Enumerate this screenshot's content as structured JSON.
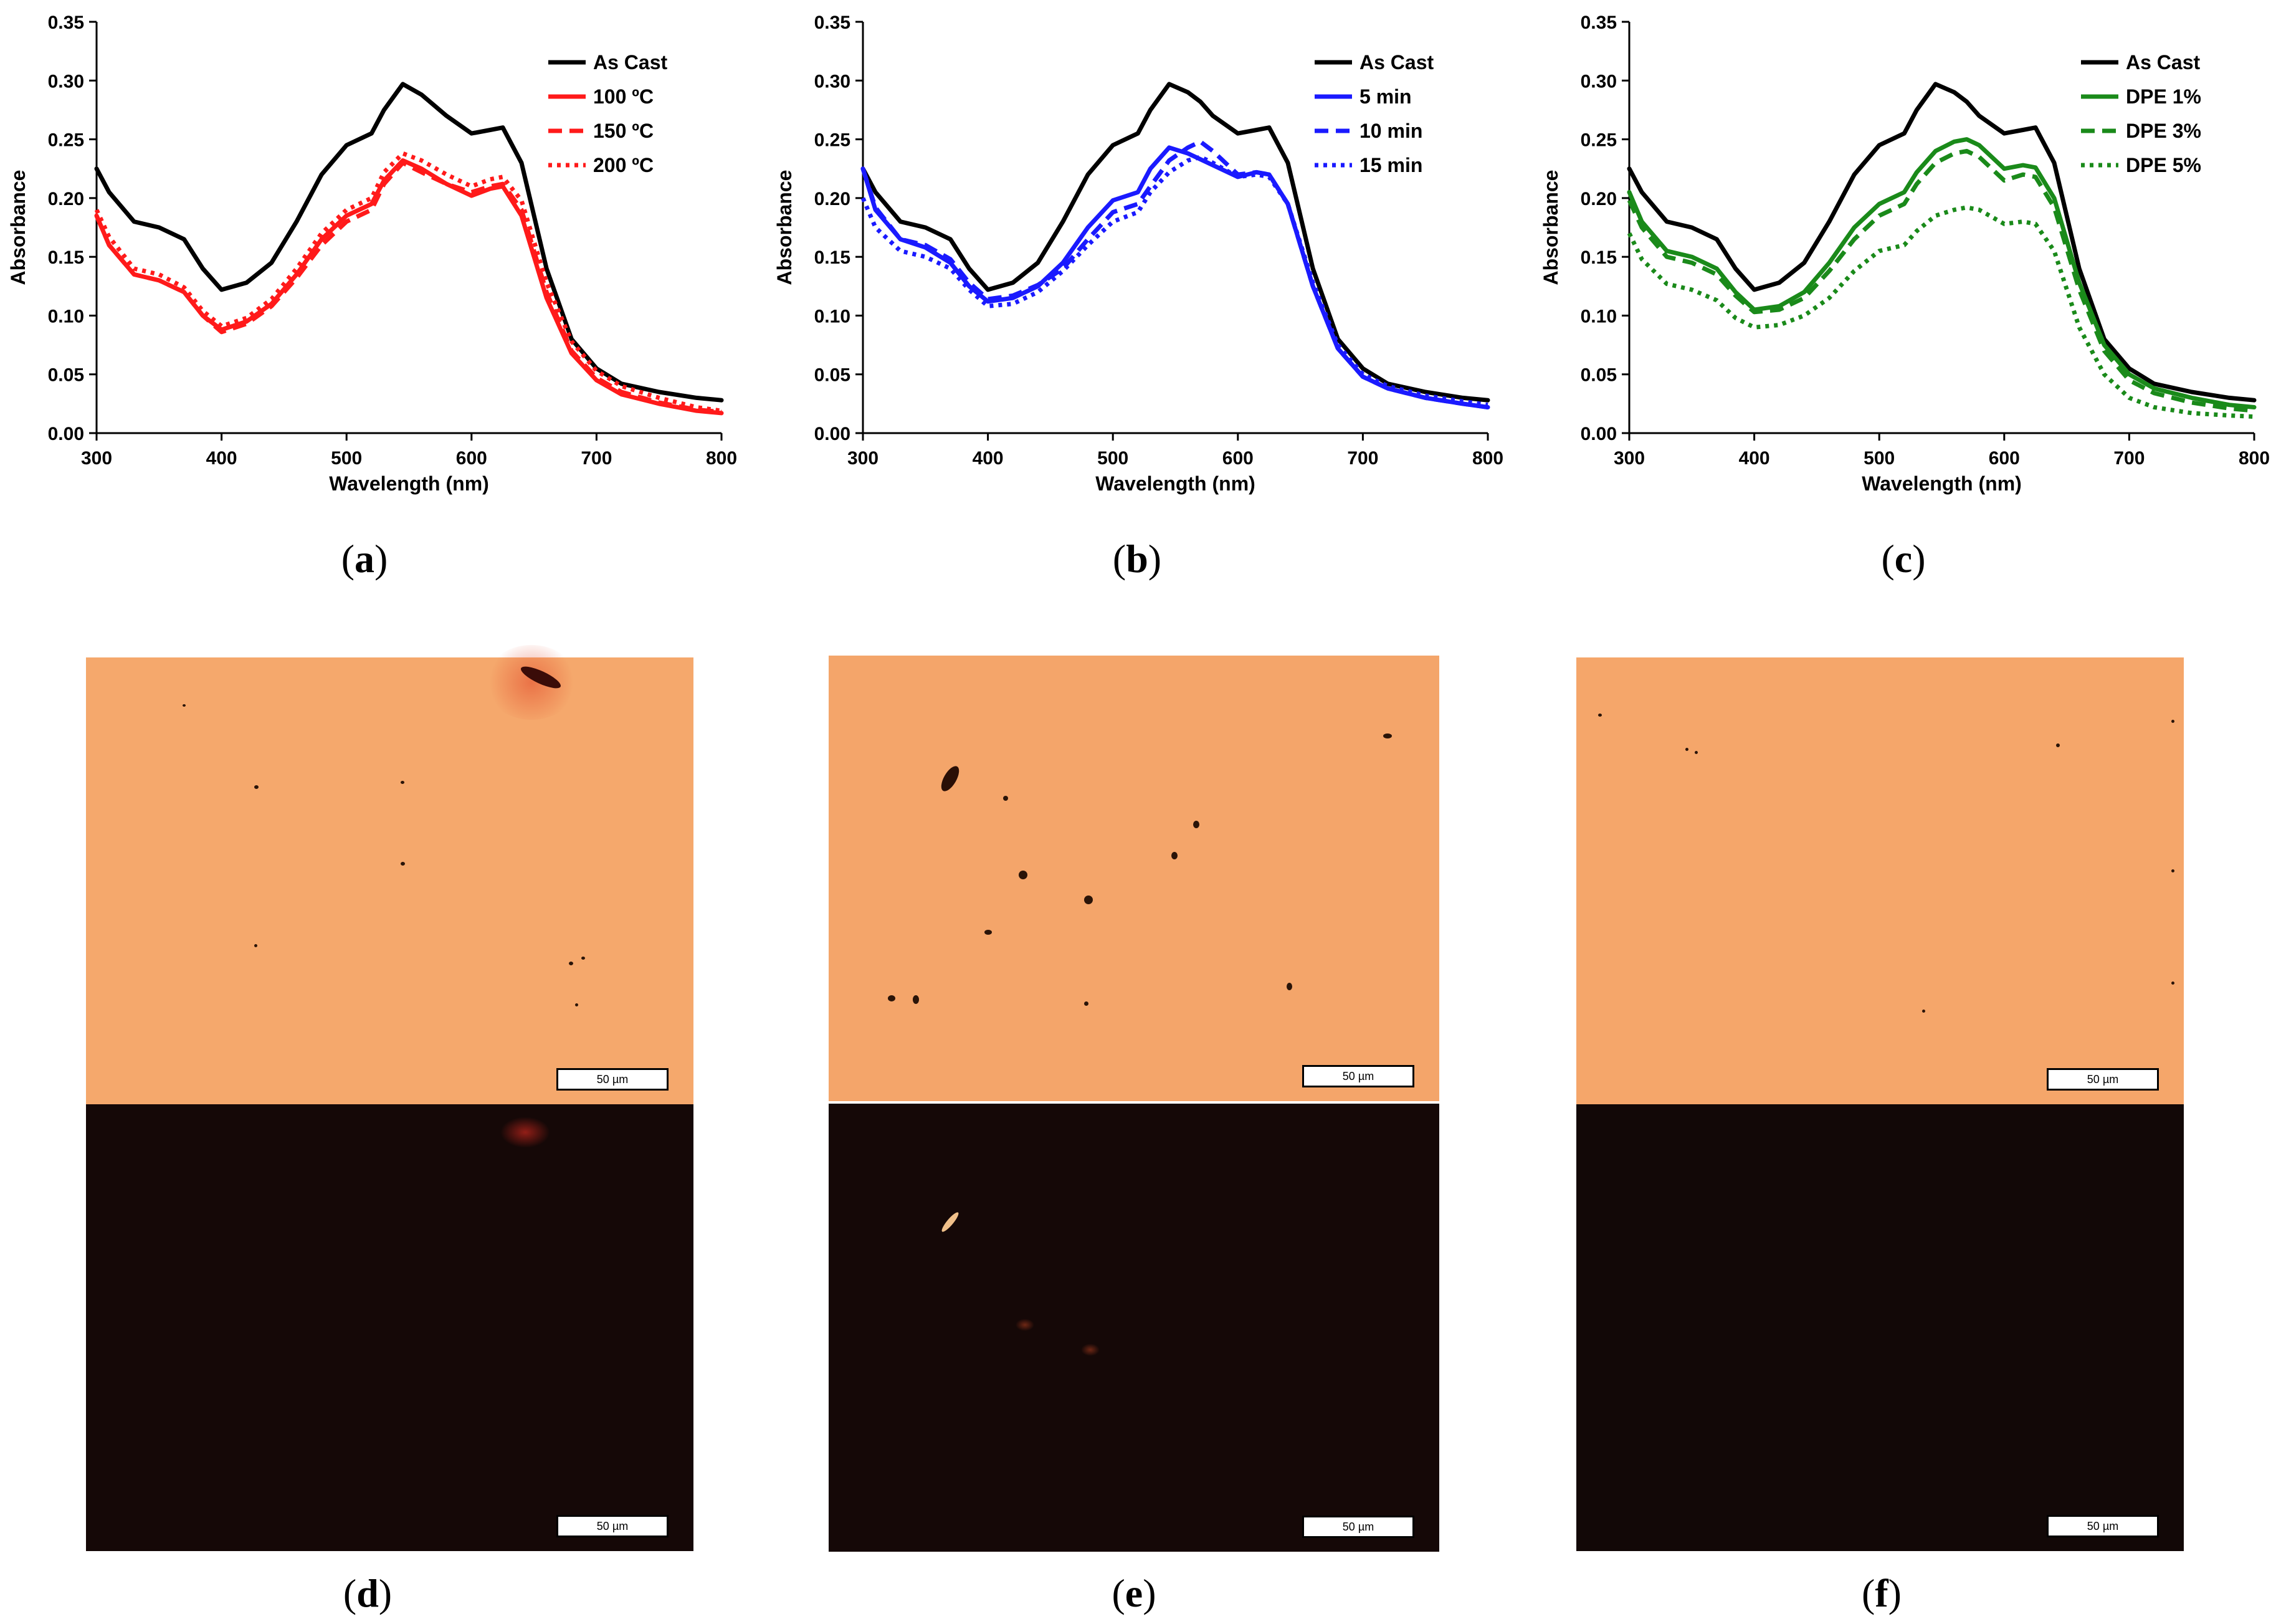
{
  "colors": {
    "as_cast": "#000000",
    "red": "#ff1a1a",
    "blue": "#1a1aff",
    "green": "#1a8a1a",
    "micro_bright": "#f5a46a",
    "micro_dark": "#150807"
  },
  "panel_labels": [
    "a",
    "b",
    "c",
    "d",
    "e",
    "f"
  ],
  "scale_bar_label": "50 µm",
  "chart_data": [
    {
      "type": "line",
      "panel": "a",
      "xlabel": "Wavelength (nm)",
      "ylabel": "Absorbance",
      "xlim": [
        300,
        800
      ],
      "ylim": [
        0,
        0.35
      ],
      "xticks": [
        "300",
        "400",
        "500",
        "600",
        "700",
        "800"
      ],
      "yticks": [
        "0.00",
        "0.05",
        "0.10",
        "0.15",
        "0.20",
        "0.25",
        "0.30",
        "0.35"
      ],
      "legend_position": "top-right",
      "x": [
        300,
        310,
        330,
        350,
        370,
        385,
        400,
        420,
        440,
        460,
        480,
        500,
        520,
        530,
        545,
        560,
        580,
        600,
        615,
        625,
        640,
        660,
        680,
        700,
        720,
        750,
        780,
        800
      ],
      "series": [
        {
          "name": "As Cast",
          "color": "#000000",
          "dash": "solid",
          "values": [
            0.225,
            0.205,
            0.18,
            0.175,
            0.165,
            0.14,
            0.122,
            0.128,
            0.145,
            0.18,
            0.22,
            0.245,
            0.255,
            0.275,
            0.297,
            0.288,
            0.27,
            0.255,
            0.258,
            0.26,
            0.23,
            0.14,
            0.08,
            0.055,
            0.042,
            0.035,
            0.03,
            0.028
          ]
        },
        {
          "name": "100 ºC",
          "color": "#ff1a1a",
          "dash": "solid",
          "values": [
            0.185,
            0.16,
            0.135,
            0.13,
            0.12,
            0.1,
            0.088,
            0.095,
            0.11,
            0.135,
            0.165,
            0.185,
            0.195,
            0.215,
            0.232,
            0.225,
            0.212,
            0.202,
            0.208,
            0.21,
            0.185,
            0.115,
            0.068,
            0.045,
            0.033,
            0.025,
            0.019,
            0.017
          ]
        },
        {
          "name": "150 ºC",
          "color": "#ff1a1a",
          "dash": "dashed",
          "values": [
            0.185,
            0.16,
            0.135,
            0.13,
            0.12,
            0.1,
            0.086,
            0.093,
            0.108,
            0.132,
            0.16,
            0.18,
            0.19,
            0.212,
            0.23,
            0.222,
            0.212,
            0.205,
            0.21,
            0.212,
            0.19,
            0.12,
            0.07,
            0.047,
            0.035,
            0.026,
            0.02,
            0.018
          ]
        },
        {
          "name": "200 ºC",
          "color": "#ff1a1a",
          "dash": "dotted",
          "values": [
            0.19,
            0.167,
            0.14,
            0.135,
            0.124,
            0.104,
            0.091,
            0.098,
            0.114,
            0.14,
            0.17,
            0.19,
            0.2,
            0.222,
            0.238,
            0.232,
            0.22,
            0.21,
            0.216,
            0.218,
            0.198,
            0.128,
            0.078,
            0.053,
            0.04,
            0.03,
            0.022,
            0.019
          ]
        }
      ]
    },
    {
      "type": "line",
      "panel": "b",
      "xlabel": "Wavelength (nm)",
      "ylabel": "Absorbance",
      "xlim": [
        300,
        800
      ],
      "ylim": [
        0,
        0.35
      ],
      "xticks": [
        "300",
        "400",
        "500",
        "600",
        "700",
        "800"
      ],
      "yticks": [
        "0.00",
        "0.05",
        "0.10",
        "0.15",
        "0.20",
        "0.25",
        "0.30",
        "0.35"
      ],
      "legend_position": "top-right",
      "x": [
        300,
        310,
        330,
        350,
        370,
        385,
        400,
        420,
        440,
        460,
        480,
        500,
        520,
        530,
        545,
        560,
        570,
        580,
        600,
        615,
        625,
        640,
        660,
        680,
        700,
        720,
        750,
        780,
        800
      ],
      "series": [
        {
          "name": "As Cast",
          "color": "#000000",
          "dash": "solid",
          "values": [
            0.225,
            0.205,
            0.18,
            0.175,
            0.165,
            0.14,
            0.122,
            0.128,
            0.145,
            0.18,
            0.22,
            0.245,
            0.255,
            0.275,
            0.297,
            0.29,
            0.282,
            0.27,
            0.255,
            0.258,
            0.26,
            0.23,
            0.14,
            0.08,
            0.055,
            0.042,
            0.035,
            0.03,
            0.028
          ]
        },
        {
          "name": "5 min",
          "color": "#1a1aff",
          "dash": "solid",
          "values": [
            0.225,
            0.19,
            0.165,
            0.158,
            0.145,
            0.125,
            0.112,
            0.115,
            0.125,
            0.145,
            0.175,
            0.198,
            0.205,
            0.225,
            0.243,
            0.238,
            0.233,
            0.228,
            0.218,
            0.222,
            0.22,
            0.195,
            0.125,
            0.072,
            0.048,
            0.038,
            0.03,
            0.025,
            0.022
          ]
        },
        {
          "name": "10 min",
          "color": "#1a1aff",
          "dash": "dashed",
          "values": [
            0.225,
            0.192,
            0.165,
            0.16,
            0.148,
            0.128,
            0.114,
            0.117,
            0.126,
            0.14,
            0.165,
            0.188,
            0.195,
            0.21,
            0.232,
            0.243,
            0.248,
            0.24,
            0.22,
            0.222,
            0.22,
            0.195,
            0.125,
            0.072,
            0.048,
            0.038,
            0.03,
            0.025,
            0.022
          ]
        },
        {
          "name": "15 min",
          "color": "#1a1aff",
          "dash": "dotted",
          "values": [
            0.2,
            0.175,
            0.155,
            0.15,
            0.14,
            0.122,
            0.108,
            0.11,
            0.12,
            0.138,
            0.16,
            0.18,
            0.188,
            0.205,
            0.222,
            0.232,
            0.235,
            0.23,
            0.218,
            0.22,
            0.218,
            0.195,
            0.128,
            0.075,
            0.05,
            0.04,
            0.032,
            0.027,
            0.024
          ]
        }
      ]
    },
    {
      "type": "line",
      "panel": "c",
      "xlabel": "Wavelength (nm)",
      "ylabel": "Absorbance",
      "xlim": [
        300,
        800
      ],
      "ylim": [
        0,
        0.35
      ],
      "xticks": [
        "300",
        "400",
        "500",
        "600",
        "700",
        "800"
      ],
      "yticks": [
        "0.00",
        "0.05",
        "0.10",
        "0.15",
        "0.20",
        "0.25",
        "0.30",
        "0.35"
      ],
      "legend_position": "top-right",
      "x": [
        300,
        310,
        330,
        350,
        370,
        385,
        400,
        420,
        440,
        460,
        480,
        500,
        520,
        530,
        545,
        560,
        570,
        580,
        600,
        615,
        625,
        640,
        660,
        680,
        700,
        720,
        750,
        780,
        800
      ],
      "series": [
        {
          "name": "As Cast",
          "color": "#000000",
          "dash": "solid",
          "values": [
            0.225,
            0.205,
            0.18,
            0.175,
            0.165,
            0.14,
            0.122,
            0.128,
            0.145,
            0.18,
            0.22,
            0.245,
            0.255,
            0.275,
            0.297,
            0.29,
            0.282,
            0.27,
            0.255,
            0.258,
            0.26,
            0.23,
            0.14,
            0.08,
            0.055,
            0.042,
            0.035,
            0.03,
            0.028
          ]
        },
        {
          "name": "DPE 1%",
          "color": "#1a8a1a",
          "dash": "solid",
          "values": [
            0.205,
            0.18,
            0.155,
            0.15,
            0.14,
            0.12,
            0.105,
            0.108,
            0.12,
            0.145,
            0.175,
            0.195,
            0.205,
            0.222,
            0.24,
            0.248,
            0.25,
            0.245,
            0.225,
            0.228,
            0.226,
            0.2,
            0.128,
            0.075,
            0.05,
            0.038,
            0.03,
            0.024,
            0.022
          ]
        },
        {
          "name": "DPE 3%",
          "color": "#1a8a1a",
          "dash": "dashed",
          "values": [
            0.198,
            0.175,
            0.15,
            0.145,
            0.135,
            0.117,
            0.103,
            0.105,
            0.115,
            0.138,
            0.165,
            0.185,
            0.195,
            0.212,
            0.23,
            0.238,
            0.24,
            0.235,
            0.215,
            0.22,
            0.218,
            0.192,
            0.122,
            0.07,
            0.045,
            0.034,
            0.026,
            0.021,
            0.019
          ]
        },
        {
          "name": "DPE 5%",
          "color": "#1a8a1a",
          "dash": "dotted",
          "values": [
            0.17,
            0.148,
            0.127,
            0.122,
            0.113,
            0.098,
            0.09,
            0.092,
            0.1,
            0.115,
            0.138,
            0.155,
            0.16,
            0.172,
            0.185,
            0.19,
            0.192,
            0.19,
            0.178,
            0.18,
            0.178,
            0.155,
            0.09,
            0.05,
            0.03,
            0.022,
            0.017,
            0.015,
            0.014
          ]
        }
      ]
    }
  ]
}
